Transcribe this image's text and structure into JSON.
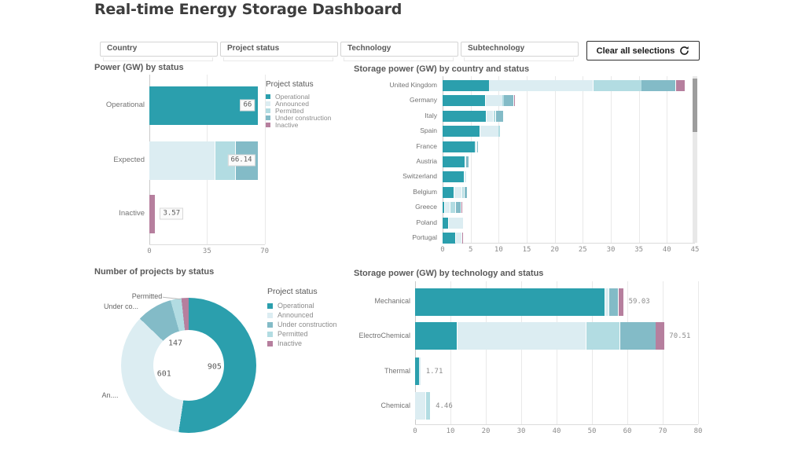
{
  "title": "Real-time Energy Storage Dashboard",
  "filters": {
    "items": [
      {
        "label": "Country"
      },
      {
        "label": "Project status"
      },
      {
        "label": "Technology"
      },
      {
        "label": "Subtechnology"
      }
    ],
    "clear_button_label": "Clear all selections"
  },
  "status_colors": {
    "Operational": "#2b9fad",
    "Announced": "#dcedf2",
    "Permitted": "#b2dce2",
    "Under construction": "#83bbc7",
    "Inactive": "#b67f9e"
  },
  "chart_data": [
    {
      "id": "power-by-status",
      "type": "bar",
      "orientation": "horizontal",
      "stacked": true,
      "title": "Power (GW) by status",
      "categories": [
        "Operational",
        "Expected",
        "Inactive"
      ],
      "series": [
        {
          "name": "Operational",
          "values": [
            66,
            0,
            0
          ]
        },
        {
          "name": "Announced",
          "values": [
            0,
            40,
            0
          ]
        },
        {
          "name": "Permitted",
          "values": [
            0,
            12.4,
            0
          ]
        },
        {
          "name": "Under construction",
          "values": [
            0,
            13.74,
            0
          ]
        },
        {
          "name": "Inactive",
          "values": [
            0,
            0,
            3.57
          ]
        }
      ],
      "bar_total_labels": [
        "66",
        "66.14",
        "3.57"
      ],
      "xlim": [
        0,
        70
      ],
      "xticks": [
        0,
        35,
        70
      ],
      "legend": {
        "title": "Project status",
        "items": [
          "Operational",
          "Announced",
          "Permitted",
          "Under construction",
          "Inactive"
        ]
      }
    },
    {
      "id": "power-by-country",
      "type": "bar",
      "orientation": "horizontal",
      "stacked": true,
      "title": "Storage power (GW) by country and status",
      "categories": [
        "United Kingdom",
        "Germany",
        "Italy",
        "Spain",
        "France",
        "Austria",
        "Switzerland",
        "Belgium",
        "Greece",
        "Poland",
        "Portugal"
      ],
      "series": [
        {
          "name": "Operational",
          "values": [
            8.3,
            7.7,
            7.8,
            6.7,
            5.8,
            4.0,
            3.9,
            2.1,
            0.4,
            1.1,
            2.4
          ]
        },
        {
          "name": "Announced",
          "values": [
            18.6,
            3.0,
            1.3,
            3.3,
            0.3,
            0.2,
            0.4,
            1.4,
            1.0,
            2.7,
            1.1
          ]
        },
        {
          "name": "Permitted",
          "values": [
            8.6,
            0.2,
            0.4,
            0.3,
            0,
            0,
            0,
            0.4,
            1.0,
            0,
            0
          ]
        },
        {
          "name": "Under construction",
          "values": [
            6.1,
            1.8,
            1.4,
            0,
            0.15,
            0.5,
            0,
            0.5,
            0.9,
            0,
            0
          ]
        },
        {
          "name": "Inactive",
          "values": [
            1.7,
            0.15,
            0,
            0,
            0,
            0,
            0,
            0,
            0.25,
            0,
            0.12
          ]
        }
      ],
      "xlim": [
        0,
        45
      ],
      "xticks": [
        0,
        5,
        10,
        15,
        20,
        25,
        30,
        35,
        40,
        45
      ],
      "scrollbar": true
    },
    {
      "id": "projects-by-status",
      "type": "pie",
      "donut": true,
      "title": "Number of projects by status",
      "slices": [
        {
          "name": "Operational",
          "value": 905,
          "value_label": "905"
        },
        {
          "name": "Announced",
          "value": 601,
          "value_label": "601",
          "outer_label": "An...."
        },
        {
          "name": "Under construction",
          "value": 147,
          "value_label": "147",
          "outer_label": "Under co..."
        },
        {
          "name": "Permitted",
          "value": 45,
          "outer_label": "Permitted"
        },
        {
          "name": "Inactive",
          "value": 30
        }
      ],
      "legend": {
        "title": "Project status",
        "items": [
          "Operational",
          "Announced",
          "Under construction",
          "Permitted",
          "Inactive"
        ]
      }
    },
    {
      "id": "power-by-technology",
      "type": "bar",
      "orientation": "horizontal",
      "stacked": true,
      "title": "Storage power (GW) by technology and status",
      "categories": [
        "Mechanical",
        "ElectroChemical",
        "Thermal",
        "Chemical"
      ],
      "series": [
        {
          "name": "Operational",
          "values": [
            53.8,
            11.9,
            1.2,
            0
          ]
        },
        {
          "name": "Announced",
          "values": [
            1.0,
            36.5,
            0.51,
            3.0
          ]
        },
        {
          "name": "Permitted",
          "values": [
            0,
            9.6,
            0,
            1.46
          ]
        },
        {
          "name": "Under construction",
          "values": [
            2.7,
            10.1,
            0,
            0
          ]
        },
        {
          "name": "Inactive",
          "values": [
            1.53,
            2.41,
            0,
            0
          ]
        }
      ],
      "bar_total_labels": [
        "59.03",
        "70.51",
        "1.71",
        "4.46"
      ],
      "xlim": [
        0,
        80
      ],
      "xticks": [
        0,
        10,
        20,
        30,
        40,
        50,
        60,
        70,
        80
      ]
    }
  ]
}
